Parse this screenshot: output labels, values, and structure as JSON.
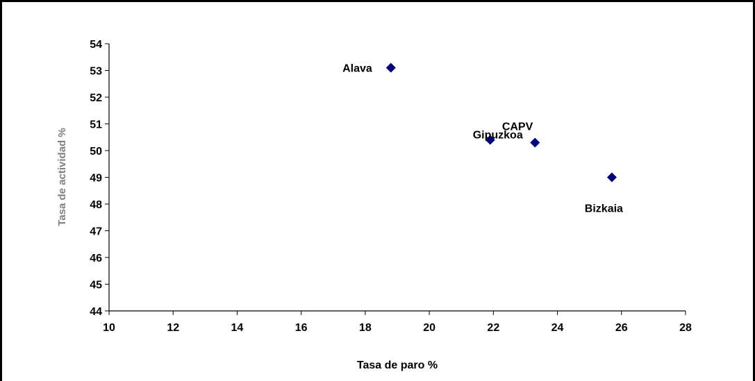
{
  "chart_data": {
    "type": "scatter",
    "xlabel": "Tasa de paro %",
    "ylabel": "Tasa de actividad %",
    "xlim": [
      10,
      28
    ],
    "ylim": [
      44,
      54
    ],
    "xticks": [
      10,
      12,
      14,
      16,
      18,
      20,
      22,
      24,
      26,
      28
    ],
    "yticks": [
      44,
      45,
      46,
      47,
      48,
      49,
      50,
      51,
      52,
      53,
      54
    ],
    "grid": false,
    "marker_color": "#000080",
    "marker": "diamond",
    "points": [
      {
        "label": "Alava",
        "x": 18.8,
        "y": 53.1
      },
      {
        "label": "Gipuzkoa",
        "x": 21.9,
        "y": 50.4
      },
      {
        "label": "CAPV",
        "x": 23.3,
        "y": 50.3
      },
      {
        "label": "Bizkaia",
        "x": 25.7,
        "y": 49.0
      }
    ]
  }
}
